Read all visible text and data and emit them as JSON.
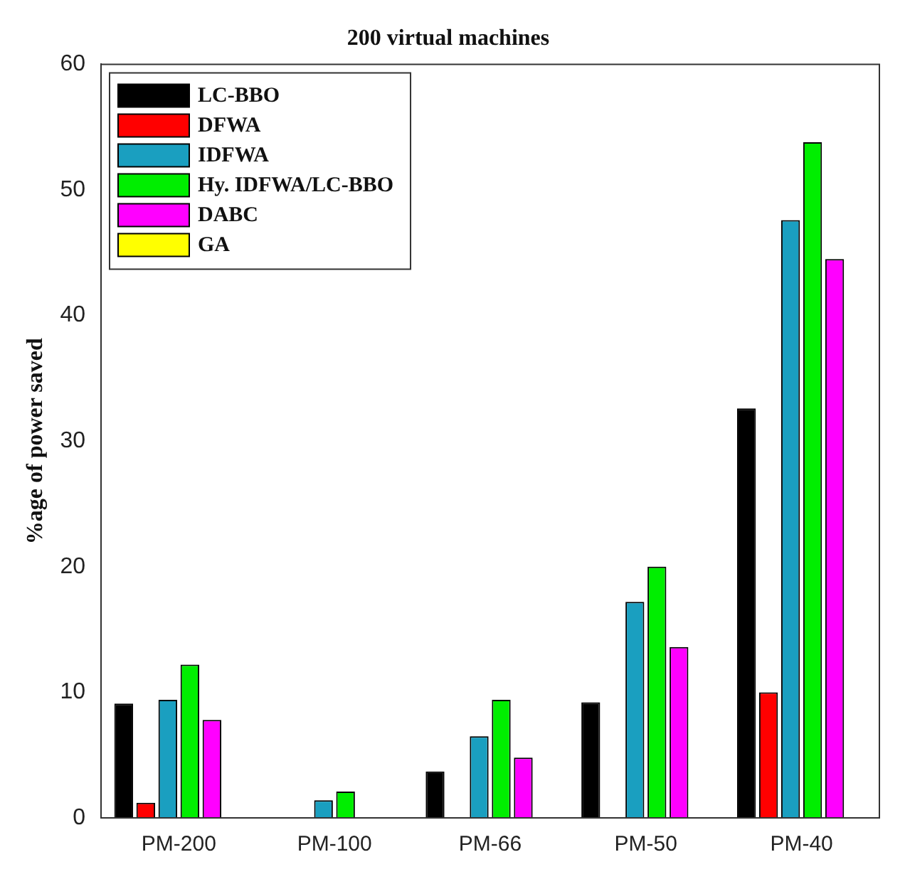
{
  "chart_data": {
    "type": "bar",
    "title": "200 virtual machines",
    "ylabel": "%age of power saved",
    "categories": [
      "PM-200",
      "PM-100",
      "PM-66",
      "PM-50",
      "PM-40"
    ],
    "series": [
      {
        "name": "LC-BBO",
        "color": "#000000",
        "values": [
          9.1,
          0,
          3.7,
          9.2,
          32.6
        ]
      },
      {
        "name": "DFWA",
        "color": "#ff0000",
        "values": [
          1.2,
          0,
          0,
          0,
          10
        ]
      },
      {
        "name": "IDFWA",
        "color": "#1a9fc0",
        "values": [
          9.4,
          1.4,
          6.5,
          17.2,
          47.6
        ]
      },
      {
        "name": "Hy. IDFWA/LC-BBO",
        "color": "#00ee00",
        "values": [
          12.2,
          2.1,
          9.4,
          20,
          53.8
        ]
      },
      {
        "name": "DABC",
        "color": "#ff00ff",
        "values": [
          7.8,
          0,
          4.8,
          13.6,
          44.5
        ]
      },
      {
        "name": "GA",
        "color": "#ffff00",
        "values": [
          0,
          0,
          0,
          0,
          0
        ]
      }
    ],
    "ylim": [
      0,
      60
    ],
    "yticks": [
      0,
      10,
      20,
      30,
      40,
      50,
      60
    ],
    "grid": false,
    "legend": "top left"
  }
}
